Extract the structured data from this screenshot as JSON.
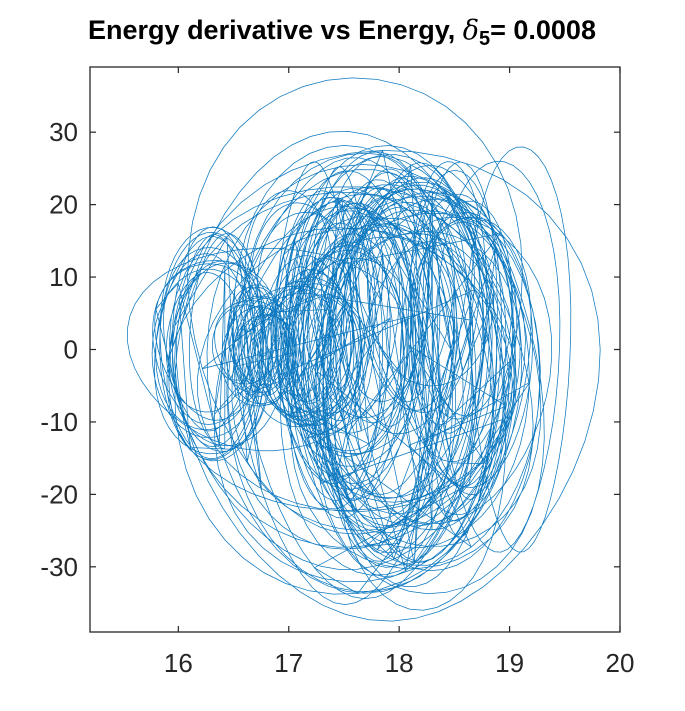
{
  "chart_data": {
    "type": "line",
    "title_main": "Energy derivative vs Energy, ",
    "title_symbol": "δ",
    "title_subscript": "5",
    "title_value": "= 0.0008",
    "xlabel": "",
    "ylabel": "",
    "xlim": [
      15.2,
      20.0
    ],
    "ylim": [
      -39.0,
      39.0
    ],
    "x_ticks": [
      16,
      17,
      18,
      19,
      20
    ],
    "x_tick_labels": [
      "16",
      "17",
      "18",
      "19",
      "20"
    ],
    "y_ticks": [
      30,
      20,
      10,
      0,
      -10,
      -20,
      -30
    ],
    "y_tick_labels": [
      "30",
      "20",
      "10",
      "0",
      "-10",
      "-20",
      "-30"
    ],
    "grid": false,
    "legend": "none",
    "line_color": "#0072BD",
    "axis_color": "#262626",
    "series": [
      {
        "trajectory_clusters": [
          {
            "center_x": 16.35,
            "center_y": 0.5,
            "radius_x": 0.55,
            "radius_y": 16,
            "count": 14
          },
          {
            "center_x": 16.7,
            "center_y": 0.5,
            "radius_x": 0.35,
            "radius_y": 8,
            "count": 12
          },
          {
            "center_x": 17.2,
            "center_y": 0.0,
            "radius_x": 0.5,
            "radius_y": 12,
            "count": 12
          },
          {
            "center_x": 17.5,
            "center_y": 0.0,
            "radius_x": 0.65,
            "radius_y": 22,
            "count": 14
          },
          {
            "center_x": 17.9,
            "center_y": -2.0,
            "radius_x": 0.9,
            "radius_y": 30,
            "count": 16
          },
          {
            "center_x": 18.2,
            "center_y": -4.0,
            "radius_x": 1.1,
            "radius_y": 33,
            "count": 14
          },
          {
            "center_x": 17.6,
            "center_y": -3.0,
            "radius_x": 1.7,
            "radius_y": 32,
            "count": 12
          },
          {
            "center_x": 18.6,
            "center_y": 0.0,
            "radius_x": 0.6,
            "radius_y": 26,
            "count": 8
          }
        ],
        "ridge_loops": {
          "count": 22,
          "x_from": 17.0,
          "x_to": 18.6,
          "y_top": 26,
          "y_bottom": -14
        },
        "outer_loops": [
          {
            "center_x": 17.6,
            "center_y": 6.0,
            "radius_x": 1.5,
            "radius_y": 31.5
          },
          {
            "center_x": 16.8,
            "center_y": 0.0,
            "radius_x": 1.25,
            "radius_y": 14
          },
          {
            "center_x": 17.9,
            "center_y": -5.0,
            "radius_x": 1.9,
            "radius_y": 32.5
          },
          {
            "center_x": 18.9,
            "center_y": -1.0,
            "radius_x": 0.55,
            "radius_y": 27
          },
          {
            "center_x": 19.1,
            "center_y": 0.0,
            "radius_x": 0.45,
            "radius_y": 28
          }
        ]
      }
    ]
  }
}
